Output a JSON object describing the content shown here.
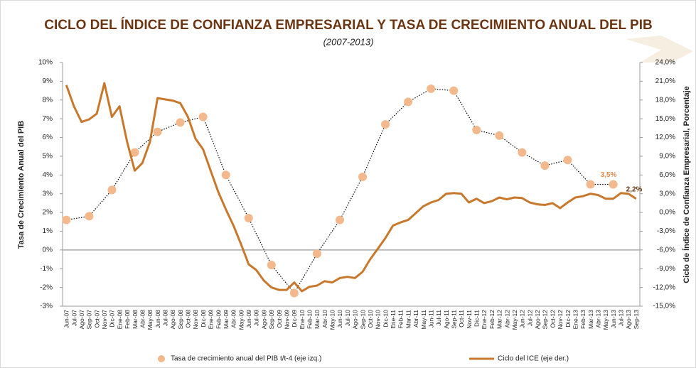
{
  "chart_data": {
    "type": "line",
    "title": "CICLO DEL ÍNDICE DE CONFIANZA EMPRESARIAL Y TASA DE CRECIMIENTO ANUAL DEL PIB",
    "subtitle": "(2007-2013)",
    "y_label": "Tasa de Crecimiento Anual del PIB",
    "y2_label": "Ciclo de Índice de Confianza Empresarial, Porcentaje",
    "categories": [
      "Jun-07",
      "Jul-07",
      "Ago-07",
      "Sep-07",
      "Oct-07",
      "Nov-07",
      "Dic-07",
      "Ene-08",
      "Feb-08",
      "Mar-08",
      "Abr-08",
      "May-08",
      "Jun-08",
      "Jul-08",
      "Ago-08",
      "Sep-08",
      "Oct-08",
      "Nov-08",
      "Dic-08",
      "Ene-09",
      "Feb-09",
      "Mar-09",
      "Abr-09",
      "May-09",
      "Jun-09",
      "Jul-09",
      "Ago-09",
      "Sep-09",
      "Oct-09",
      "Nov-09",
      "Dic-09",
      "Ene-10",
      "Feb-10",
      "Mar-10",
      "Abr-10",
      "May-10",
      "Jun-10",
      "Jul-10",
      "Ago-10",
      "Sep-10",
      "Oct-10",
      "Nov-10",
      "Dic-10",
      "Ene-11",
      "Feb-11",
      "Mar-11",
      "Abr-11",
      "May-11",
      "Jun-11",
      "Jul-11",
      "Ago-11",
      "Sep-11",
      "Oct-11",
      "Nov-11",
      "Dic-11",
      "Ene-12",
      "Feb-12",
      "Mar-12",
      "Abr-12",
      "May-12",
      "Jun-12",
      "Jul-12",
      "Ago-12",
      "Sep-12",
      "Oct-12",
      "Nov-12",
      "Dic-12",
      "Ene-13",
      "Feb-13",
      "Mar-13",
      "Abr-13",
      "May-13",
      "Jun-13",
      "Jul-13",
      "Ago-13",
      "Sep-13"
    ],
    "series": [
      {
        "name": "Tasa de crecimiento anual del PIB  t/t-4 (eje izq.)",
        "color": "#f3b98c",
        "line_color": "#000000",
        "x": [
          "Jun-07",
          "Sep-07",
          "Dic-07",
          "Mar-08",
          "Jun-08",
          "Sep-08",
          "Dic-08",
          "Mar-09",
          "Jun-09",
          "Sep-09",
          "Dic-09",
          "Mar-10",
          "Jun-10",
          "Sep-10",
          "Dic-10",
          "Mar-11",
          "Jun-11",
          "Sep-11",
          "Dic-11",
          "Mar-12",
          "Jun-12",
          "Sep-12",
          "Dic-12",
          "Mar-13",
          "Jun-13"
        ],
        "values": [
          1.6,
          1.8,
          3.2,
          5.2,
          6.3,
          6.8,
          7.1,
          4.0,
          1.7,
          -0.8,
          -2.3,
          -0.2,
          1.6,
          3.9,
          6.7,
          7.9,
          8.6,
          8.5,
          6.4,
          6.1,
          5.2,
          4.5,
          4.8,
          3.5,
          3.5
        ],
        "value_labels": [
          null,
          null,
          null,
          null,
          null,
          null,
          null,
          null,
          null,
          null,
          null,
          null,
          null,
          null,
          null,
          null,
          null,
          null,
          null,
          null,
          null,
          null,
          null,
          null,
          "3,5%"
        ]
      },
      {
        "name": "Ciclo del ICE (eje der.)",
        "color": "#c8782c",
        "axis": "y2",
        "values": [
          20.4,
          17.0,
          14.5,
          14.9,
          15.8,
          20.7,
          15.3,
          17.0,
          11.3,
          6.7,
          7.9,
          11.3,
          18.3,
          18.1,
          17.9,
          17.5,
          15.3,
          11.8,
          10.1,
          6.7,
          3.3,
          0.5,
          -2.1,
          -5.1,
          -8.3,
          -9.2,
          -10.9,
          -12.0,
          -12.4,
          -12.4,
          -11.2,
          -12.6,
          -11.9,
          -11.7,
          -11.0,
          -11.2,
          -10.5,
          -10.3,
          -10.5,
          -9.5,
          -7.5,
          -5.8,
          -4.1,
          -2.1,
          -1.6,
          -1.2,
          -0.1,
          1.0,
          1.6,
          2.0,
          3.0,
          3.1,
          3.0,
          1.6,
          2.2,
          1.5,
          1.8,
          2.4,
          2.1,
          2.4,
          2.3,
          1.6,
          1.3,
          1.2,
          1.5,
          0.7,
          1.6,
          2.4,
          2.6,
          3.0,
          2.8,
          2.2,
          2.2,
          3.1,
          3.0,
          2.2
        ],
        "value_labels": [
          null,
          null,
          null,
          null,
          null,
          null,
          null,
          null,
          null,
          null,
          null,
          null,
          null,
          null,
          null,
          null,
          null,
          null,
          null,
          null,
          null,
          null,
          null,
          null,
          null,
          null,
          null,
          null,
          null,
          null,
          null,
          null,
          null,
          null,
          null,
          null,
          null,
          null,
          null,
          null,
          null,
          null,
          null,
          null,
          null,
          null,
          null,
          null,
          null,
          null,
          null,
          null,
          null,
          null,
          null,
          null,
          null,
          null,
          null,
          null,
          null,
          null,
          null,
          null,
          null,
          null,
          null,
          null,
          null,
          null,
          null,
          null,
          null,
          null,
          null,
          "2,2%"
        ]
      }
    ],
    "ylim": [
      -3,
      10
    ],
    "yticks": [
      {
        "value": -3,
        "label": "-3%"
      },
      {
        "value": -2,
        "label": "-2%"
      },
      {
        "value": -1,
        "label": "-1%"
      },
      {
        "value": 0,
        "label": "0%"
      },
      {
        "value": 1,
        "label": "1%"
      },
      {
        "value": 2,
        "label": "2%"
      },
      {
        "value": 3,
        "label": "3%"
      },
      {
        "value": 4,
        "label": "4%"
      },
      {
        "value": 5,
        "label": "5%"
      },
      {
        "value": 6,
        "label": "6%"
      },
      {
        "value": 7,
        "label": "7%"
      },
      {
        "value": 8,
        "label": "8%"
      },
      {
        "value": 9,
        "label": "9%"
      },
      {
        "value": 10,
        "label": "10%"
      }
    ],
    "y2lim": [
      -15,
      24
    ],
    "y2ticks": [
      {
        "value": -15,
        "label": "-15,0%"
      },
      {
        "value": -12,
        "label": "-12,0%"
      },
      {
        "value": -9,
        "label": "-9,0%"
      },
      {
        "value": -6,
        "label": "-6,0%"
      },
      {
        "value": -3,
        "label": "-3,0%"
      },
      {
        "value": 0,
        "label": "0,0%"
      },
      {
        "value": 3,
        "label": "3,0%"
      },
      {
        "value": 6,
        "label": "6,0%"
      },
      {
        "value": 9,
        "label": "9,0%"
      },
      {
        "value": 12,
        "label": "12,0%"
      },
      {
        "value": 15,
        "label": "15,0%"
      },
      {
        "value": 18,
        "label": "18,0%"
      },
      {
        "value": 21,
        "label": "21,0%"
      },
      {
        "value": 24,
        "label": "24,0%"
      }
    ],
    "zero_line": true
  }
}
